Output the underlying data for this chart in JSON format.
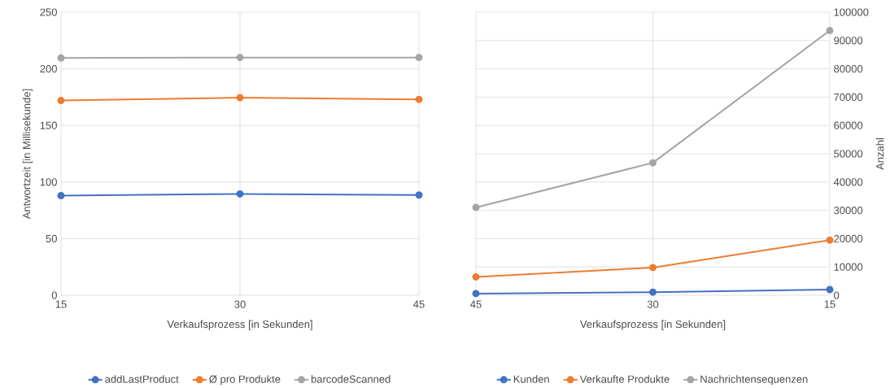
{
  "chart_data": [
    {
      "type": "line",
      "xlabel": "Verkaufsprozess [in Sekunden]",
      "ylabel": "Antwortzeit [in Millisekunde]",
      "x": [
        15,
        30,
        45
      ],
      "xlim": [
        15,
        45
      ],
      "xticks": [
        15,
        30,
        45
      ],
      "ylim": [
        0,
        250
      ],
      "yticks": [
        0,
        50,
        100,
        150,
        200,
        250
      ],
      "grid": true,
      "legend": "bottom",
      "marker": "circle",
      "line_style": "solid",
      "series": [
        {
          "name": "addLastProduct",
          "color": "#4472c4",
          "values": [
            88,
            89.5,
            88.5
          ]
        },
        {
          "name": "Ø pro Produkte",
          "color": "#ed7d31",
          "values": [
            172,
            174.5,
            173
          ]
        },
        {
          "name": "barcodeScanned",
          "color": "#a5a5a5",
          "values": [
            209.5,
            210,
            210
          ]
        }
      ]
    },
    {
      "type": "line",
      "xlabel": "Verkaufsprozess [in Sekunden]",
      "y2label": "Anzahl",
      "x": [
        45,
        30,
        15
      ],
      "xlim": [
        45,
        15
      ],
      "xticks": [
        45,
        30,
        15
      ],
      "y2lim": [
        0,
        100000
      ],
      "y2ticks": [
        0,
        10000,
        20000,
        30000,
        40000,
        50000,
        60000,
        70000,
        80000,
        90000,
        100000
      ],
      "grid": true,
      "legend": "bottom",
      "marker": "circle",
      "line_style": "solid",
      "series": [
        {
          "name": "Kunden",
          "color": "#4472c4",
          "axis": "y2",
          "values": [
            600,
            1100,
            2000
          ]
        },
        {
          "name": "Verkaufte Produkte",
          "color": "#ed7d31",
          "axis": "y2",
          "values": [
            6500,
            9800,
            19500
          ]
        },
        {
          "name": "Nachrichtensequenzen",
          "color": "#a5a5a5",
          "axis": "y2",
          "values": [
            31000,
            46800,
            93500
          ]
        }
      ]
    }
  ]
}
